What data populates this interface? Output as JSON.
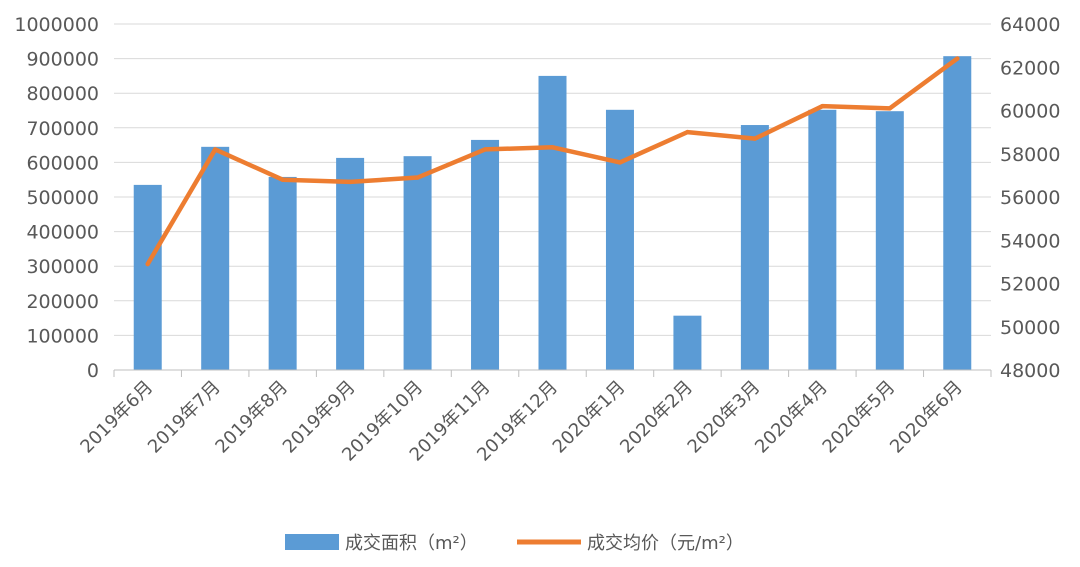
{
  "chart_data": {
    "type": "bar",
    "categories": [
      "2019年6月",
      "2019年7月",
      "2019年8月",
      "2019年9月",
      "2019年10月",
      "2019年11月",
      "2019年12月",
      "2020年1月",
      "2020年2月",
      "2020年3月",
      "2020年4月",
      "2020年5月",
      "2020年6月"
    ],
    "series": [
      {
        "name": "成交面积（m²）",
        "type": "bar",
        "axis": "left",
        "color": "#5B9BD5",
        "values": [
          535000,
          645000,
          558000,
          613000,
          618000,
          665000,
          850000,
          752000,
          157000,
          708000,
          752000,
          748000,
          907000
        ]
      },
      {
        "name": "成交均价（元/m²）",
        "type": "line",
        "axis": "right",
        "color": "#ED7D31",
        "values": [
          52900,
          58200,
          56800,
          56700,
          56900,
          58200,
          58300,
          57600,
          59000,
          58700,
          60200,
          60100,
          62400
        ]
      }
    ],
    "y_left": {
      "min": 0,
      "max": 1000000,
      "ticks": [
        "0",
        "100000",
        "200000",
        "300000",
        "400000",
        "500000",
        "600000",
        "700000",
        "800000",
        "900000",
        "1000000"
      ]
    },
    "y_right": {
      "min": 48000,
      "max": 64000,
      "ticks": [
        "48000",
        "50000",
        "52000",
        "54000",
        "56000",
        "58000",
        "60000",
        "62000",
        "64000"
      ]
    },
    "grid": true,
    "legend": "bottom"
  }
}
